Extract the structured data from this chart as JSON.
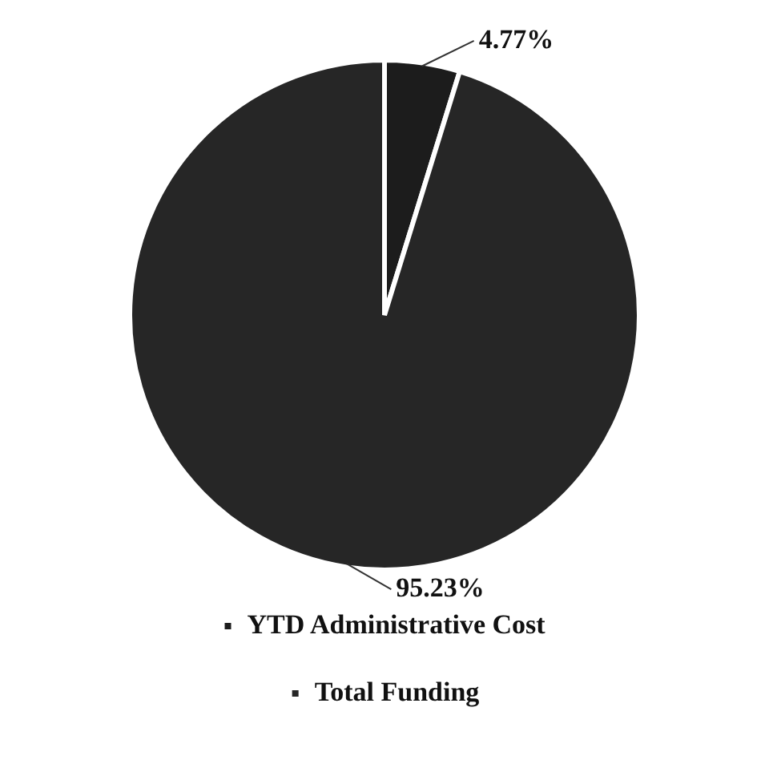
{
  "chart_data": {
    "type": "pie",
    "categories": [
      "YTD Administrative Cost",
      "Total Funding"
    ],
    "values": [
      4.77,
      95.23
    ],
    "colors": [
      "#1c1c1c",
      "#262626"
    ],
    "value_labels": [
      "4.77%",
      "95.23%"
    ],
    "legend": "bottom"
  }
}
